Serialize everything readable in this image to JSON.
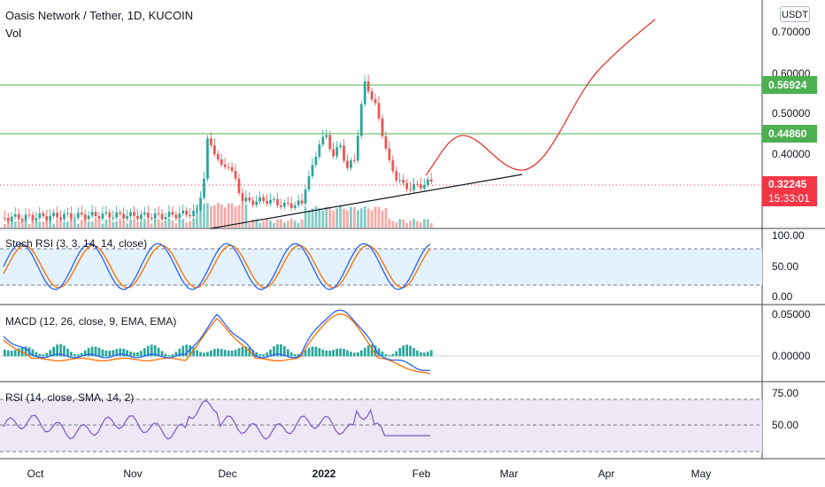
{
  "header": {
    "symbol_title": "Oasis Network / Tether, 1D, KUCOIN",
    "volume_label": "Vol",
    "currency": "USDT"
  },
  "price_axis": {
    "ticks": [
      "0.70000",
      "0.60000",
      "0.50000",
      "0.40000"
    ]
  },
  "price_tags": {
    "resistance_high": {
      "value": "0.56924",
      "color": "#4caf50"
    },
    "resistance_low": {
      "value": "0.44860",
      "color": "#4caf50"
    },
    "last_price": {
      "value": "0.32245",
      "countdown": "15:33:01",
      "color": "#f23645"
    }
  },
  "time_axis": {
    "ticks": [
      "Oct",
      "Nov",
      "Dec",
      "2022",
      "Feb",
      "Mar",
      "Apr",
      "May"
    ]
  },
  "indicators": {
    "stoch_rsi": {
      "title": "Stoch RSI (3, 3, 14, 14, close)",
      "ticks": [
        "100.00",
        "50.00",
        "0.00"
      ]
    },
    "macd": {
      "title": "MACD (12, 26, close, 9, EMA, EMA)",
      "ticks": [
        "0.05000",
        "0.00000"
      ]
    },
    "rsi": {
      "title": "RSI (14, close, SMA, 14, 2)",
      "ticks": [
        "75.00",
        "50.00"
      ]
    }
  },
  "colors": {
    "up": "#26a69a",
    "down": "#ef5350",
    "projection": "#e53935",
    "trendline": "#131722",
    "stoch_k": "#2962ff",
    "stoch_d": "#ff6d00",
    "rsi_line": "#7e57c2",
    "rsi_band": "#ede7f6",
    "stoch_band": "#e3f2fd"
  }
}
